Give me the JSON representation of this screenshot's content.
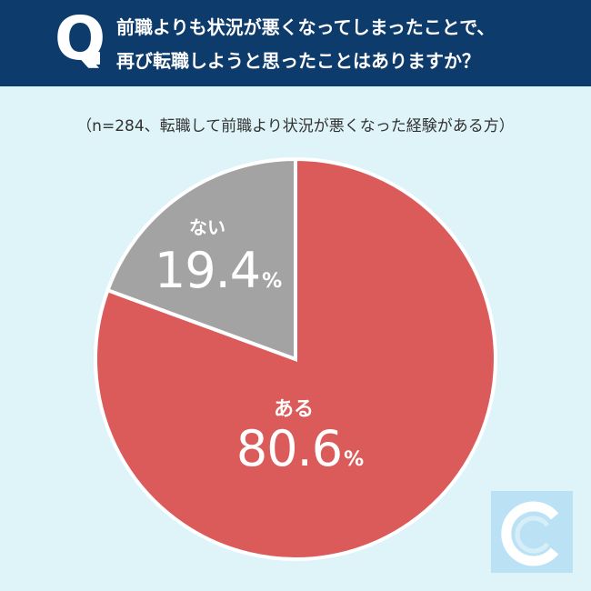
{
  "question": {
    "mark": "Q",
    "line1": "前職よりも状況が悪くなってしまったことで、",
    "line2": "再び転職しようと思ったことはありますか？"
  },
  "sample_note": "（n=284、転職して前職より状況が悪くなった経験がある方）",
  "percent_sign": "%",
  "colors": {
    "header_bg": "#0d3b6b",
    "page_bg": "#dff4f9",
    "aru": "#db5a5a",
    "nai": "#a3a3a3",
    "logo": "#aedcf2"
  },
  "chart_data": {
    "type": "pie",
    "slices": [
      {
        "label": "ある",
        "value": 80.6,
        "value_text": "80.6",
        "color": "#db5a5a"
      },
      {
        "label": "ない",
        "value": 19.4,
        "value_text": "19.4",
        "color": "#a3a3a3"
      }
    ]
  }
}
